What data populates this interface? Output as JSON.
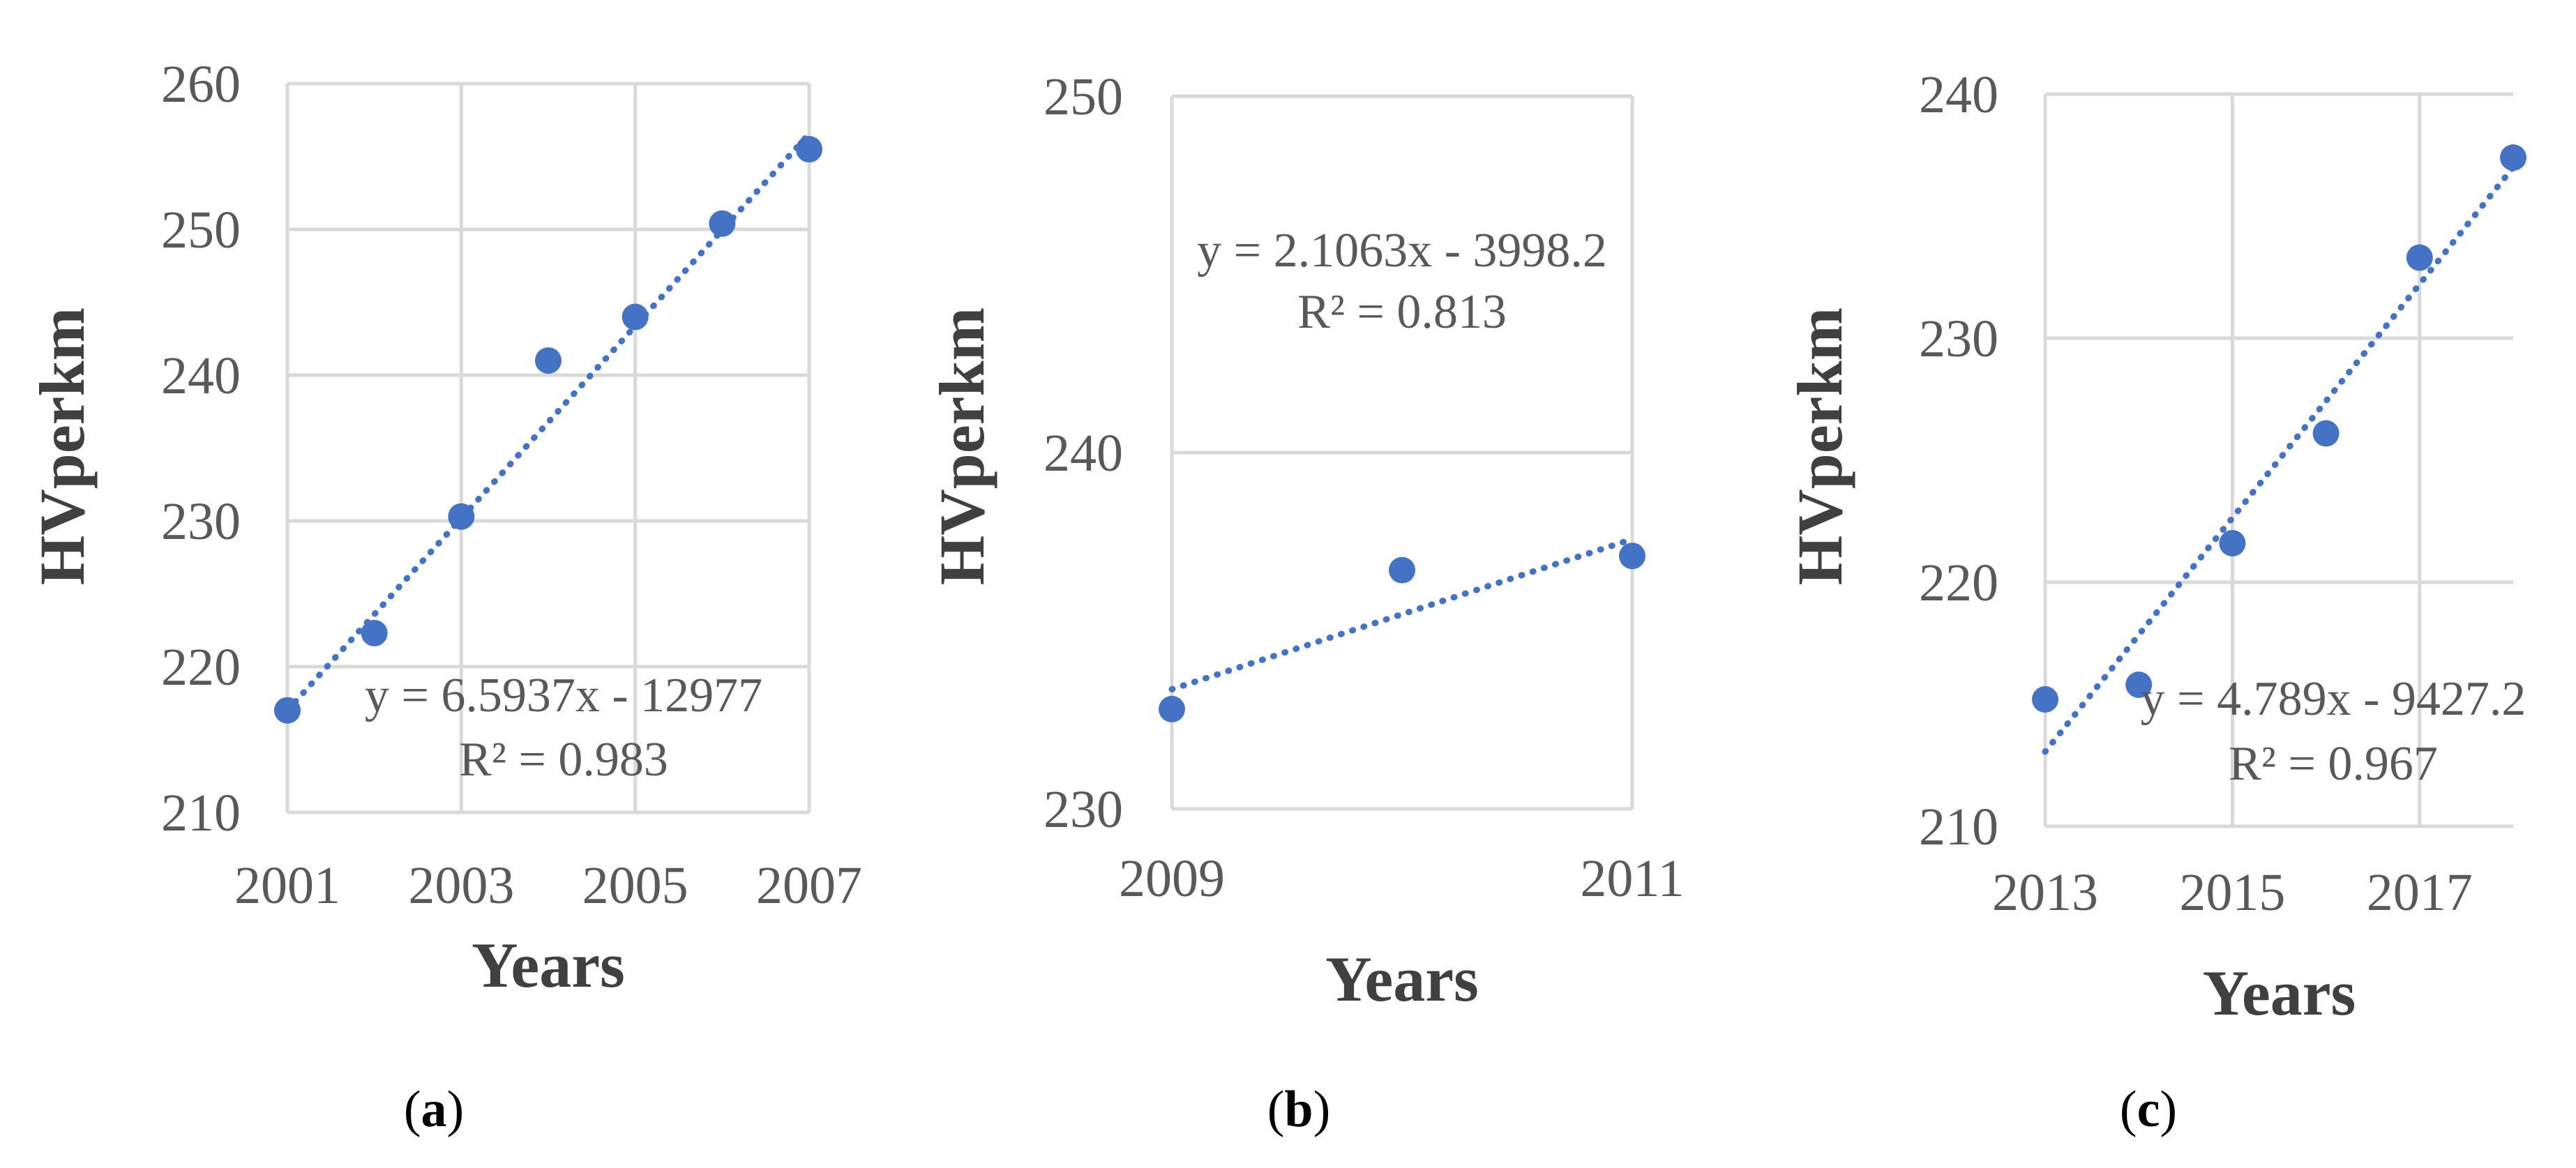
{
  "chart_data": [
    {
      "type": "scatter",
      "panel_label": "a",
      "xlabel": "Years",
      "ylabel": "HVperkm",
      "xlim": [
        2001,
        2007
      ],
      "ylim": [
        210,
        260
      ],
      "xticks": [
        2001,
        2003,
        2005,
        2007
      ],
      "yticks": [
        210,
        220,
        230,
        240,
        250,
        260
      ],
      "grid": true,
      "series": [
        {
          "x": [
            2001,
            2002,
            2003,
            2004,
            2005,
            2006,
            2007
          ],
          "y": [
            217.0,
            222.3,
            230.3,
            241.0,
            244.0,
            250.4,
            255.5
          ]
        }
      ],
      "trendline": {
        "slope": 6.5937,
        "intercept": -12977,
        "style": "dotted",
        "x": [
          2001,
          2007
        ]
      },
      "equation": "y = 6.5937x - 12977",
      "r2": "R² = 0.983",
      "marker_color": "#4472c4"
    },
    {
      "type": "scatter",
      "panel_label": "b",
      "xlabel": "Years",
      "ylabel": "HVperkm",
      "xlim": [
        2009,
        2011
      ],
      "ylim": [
        230,
        250
      ],
      "xticks": [
        2009,
        2011
      ],
      "yticks": [
        230,
        240,
        250
      ],
      "grid": true,
      "series": [
        {
          "x": [
            2009,
            2010,
            2011
          ],
          "y": [
            232.8,
            236.7,
            237.1
          ]
        }
      ],
      "trendline": {
        "slope": 2.1063,
        "intercept": -3998.2,
        "style": "dotted",
        "x": [
          2009,
          2011
        ]
      },
      "equation": "y = 2.1063x - 3998.2",
      "r2": "R² = 0.813",
      "marker_color": "#4472c4"
    },
    {
      "type": "scatter",
      "panel_label": "c",
      "xlabel": "Years",
      "ylabel": "HVperkm",
      "xlim": [
        2013,
        2018
      ],
      "ylim": [
        210,
        240
      ],
      "xticks": [
        2013,
        2015,
        2017
      ],
      "yticks": [
        210,
        220,
        230,
        240
      ],
      "grid": true,
      "series": [
        {
          "x": [
            2013,
            2014,
            2015,
            2016,
            2017,
            2018
          ],
          "y": [
            215.2,
            215.8,
            221.6,
            226.1,
            233.3,
            237.4
          ]
        }
      ],
      "trendline": {
        "slope": 4.789,
        "intercept": -9427.2,
        "style": "dotted",
        "x": [
          2013,
          2018
        ]
      },
      "equation": "y = 4.789x - 9427.2",
      "r2": "R² = 0.967",
      "marker_color": "#4472c4"
    }
  ]
}
